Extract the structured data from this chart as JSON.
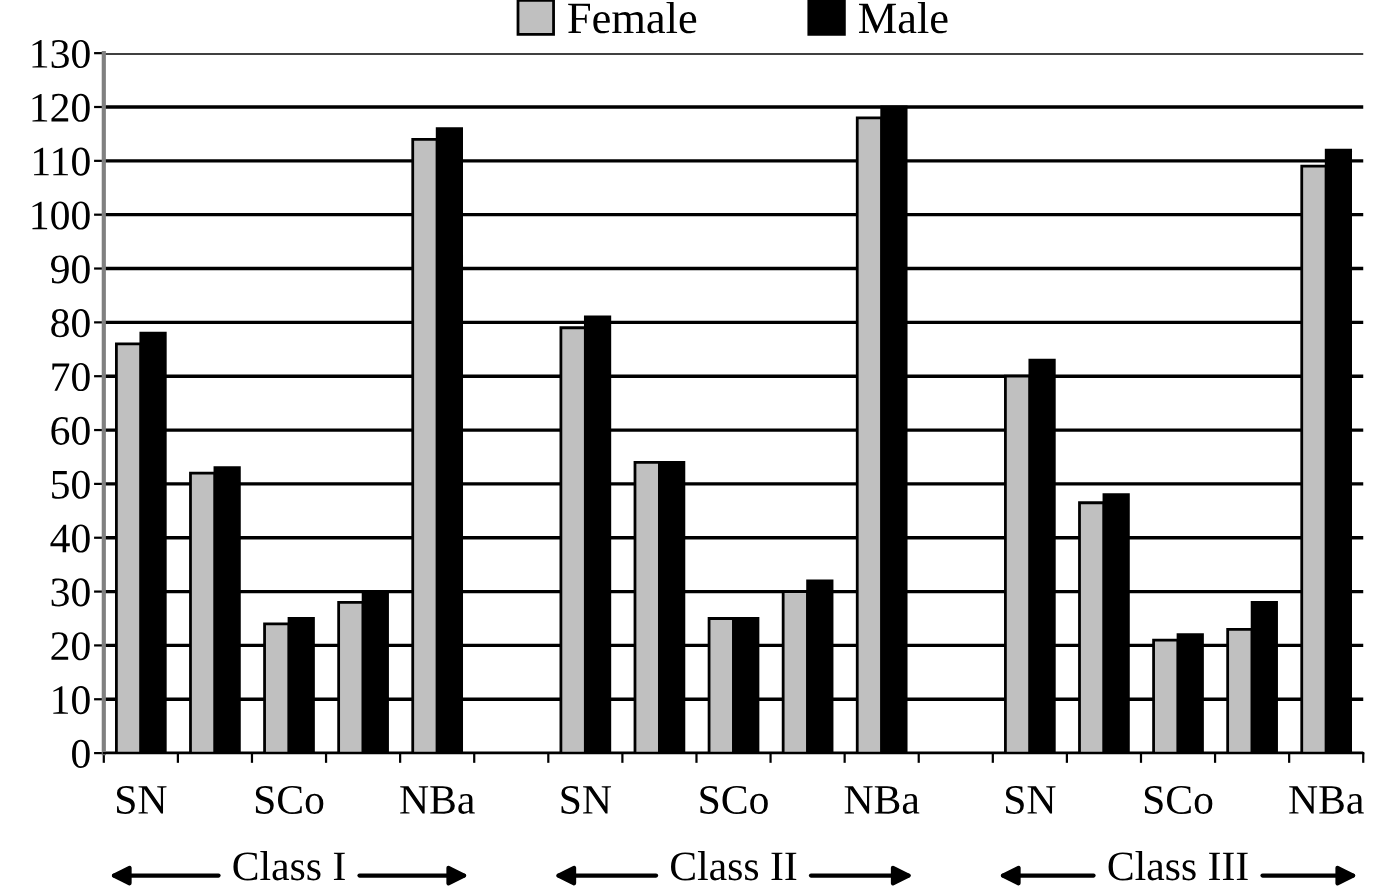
{
  "chart_data": {
    "type": "bar",
    "categories": [
      "SN",
      null,
      "SCo",
      null,
      "NBa",
      null,
      "SN",
      null,
      "SCo",
      null,
      "NBa",
      null,
      "SN",
      null,
      "SCo",
      null,
      "NBa"
    ],
    "series": [
      {
        "name": "Female",
        "color": "#c0c0c0",
        "values": [
          76,
          52,
          24,
          28,
          114,
          null,
          79,
          54,
          25,
          30,
          118,
          null,
          70,
          46.5,
          21,
          23,
          109
        ]
      },
      {
        "name": "Male",
        "color": "#000000",
        "values": [
          78,
          53,
          25,
          30,
          116,
          null,
          81,
          54,
          25,
          32,
          120,
          null,
          73,
          48,
          22,
          28,
          112
        ]
      }
    ],
    "ylim": [
      0,
      130
    ],
    "yticks": [
      0,
      10,
      20,
      30,
      40,
      50,
      60,
      70,
      80,
      90,
      100,
      110,
      120,
      130
    ],
    "grid": "y",
    "legend": "top",
    "annotations": [
      "Class I",
      "Class II",
      "Class III"
    ]
  }
}
